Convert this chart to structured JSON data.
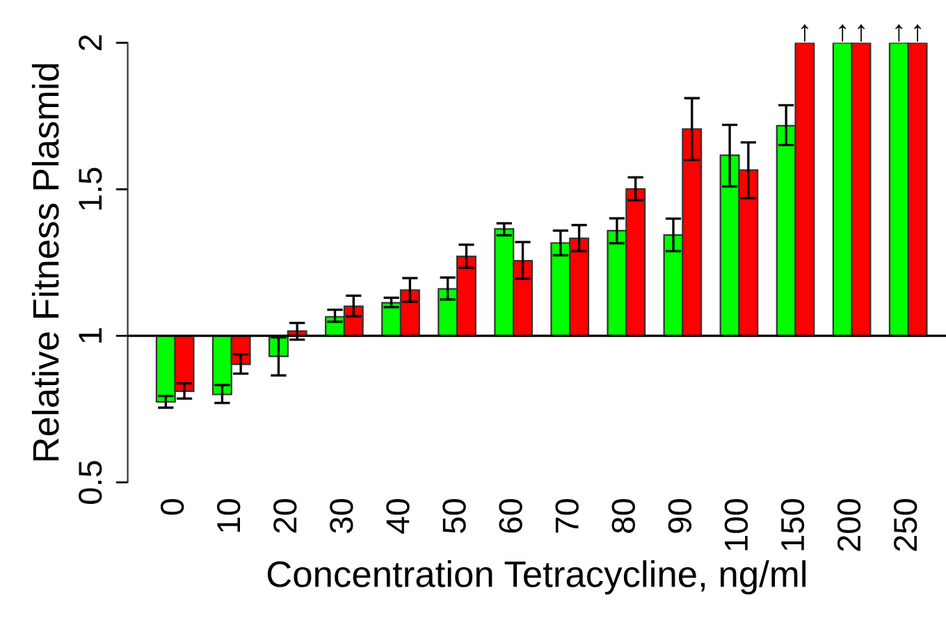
{
  "chart_data": {
    "type": "bar",
    "xlabel": "Concentration Tetracycline, ng/ml",
    "ylabel": "Relative Fitness Plasmid",
    "categories": [
      "0",
      "10",
      "20",
      "30",
      "40",
      "50",
      "60",
      "70",
      "80",
      "90",
      "100",
      "150",
      "200",
      "250"
    ],
    "series": [
      {
        "color": "#00ff00",
        "base": [
          1,
          1,
          1,
          1,
          1,
          1,
          1,
          1,
          1,
          1,
          1,
          1,
          1,
          1
        ],
        "values": [
          -0.225,
          -0.2,
          -0.07,
          0.065,
          0.113,
          0.16,
          0.365,
          0.317,
          0.359,
          0.344,
          0.616,
          0.717,
          1.0,
          1.0
        ],
        "errors": [
          [
            0.755,
            0.795
          ],
          [
            0.771,
            0.832
          ],
          [
            0.865,
            0.995
          ],
          [
            1.048,
            1.089
          ],
          [
            1.098,
            1.13
          ],
          [
            1.124,
            1.199
          ],
          [
            1.343,
            1.384
          ],
          [
            1.275,
            1.359
          ],
          [
            1.316,
            1.401
          ],
          [
            1.289,
            1.4
          ],
          [
            1.51,
            1.72
          ],
          [
            1.651,
            1.787
          ],
          null,
          null
        ],
        "value_labels": [
          null,
          null,
          null,
          null,
          null,
          null,
          null,
          null,
          null,
          null,
          null,
          null,
          "↑",
          "↑"
        ]
      },
      {
        "color": "#ff0000",
        "base": [
          1,
          1,
          1,
          1,
          1,
          1,
          1,
          1,
          1,
          1,
          1,
          1,
          1,
          1
        ],
        "values": [
          -0.189,
          -0.097,
          0.016,
          0.101,
          0.156,
          0.271,
          0.256,
          0.333,
          0.501,
          0.706,
          0.566,
          1.0,
          1.0,
          1.0
        ],
        "errors": [
          [
            0.786,
            0.838
          ],
          [
            0.871,
            0.937
          ],
          [
            0.987,
            1.044
          ],
          [
            1.067,
            1.137
          ],
          [
            1.116,
            1.197
          ],
          [
            1.232,
            1.311
          ],
          [
            1.195,
            1.32
          ],
          [
            1.289,
            1.378
          ],
          [
            1.463,
            1.541
          ],
          [
            1.6,
            1.811
          ],
          [
            1.47,
            1.66
          ],
          null,
          null,
          null
        ],
        "value_labels": [
          null,
          null,
          null,
          null,
          null,
          null,
          null,
          null,
          null,
          null,
          null,
          "↑",
          "↑",
          "↑"
        ]
      }
    ],
    "ylim": [
      0.5,
      2
    ],
    "yticks": [
      0.5,
      1,
      1.5,
      2
    ],
    "ref_lines": [
      {
        "axis": "y",
        "value": 1,
        "color": "#000000",
        "line_style": "solid"
      }
    ],
    "grid": false,
    "legend": false
  }
}
